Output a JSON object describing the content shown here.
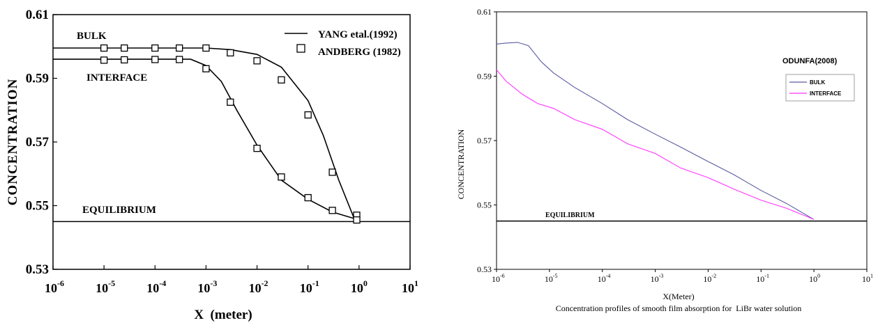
{
  "chart_data": [
    {
      "type": "line",
      "xlabel": "X  (meter)",
      "ylabel": "CONCENTRATION",
      "xscale": "log",
      "xlim": [
        1e-06,
        10
      ],
      "ylim": [
        0.53,
        0.61
      ],
      "xticks": [
        {
          "base": "10",
          "exp": "-6",
          "value": 1e-06
        },
        {
          "base": "10",
          "exp": "-5",
          "value": 1e-05
        },
        {
          "base": "10",
          "exp": "-4",
          "value": 0.0001
        },
        {
          "base": "10",
          "exp": "-3",
          "value": 0.001
        },
        {
          "base": "10",
          "exp": "-2",
          "value": 0.01
        },
        {
          "base": "10",
          "exp": "-1",
          "value": 0.1
        },
        {
          "base": "10",
          "exp": "0",
          "value": 1
        },
        {
          "base": "10",
          "exp": "1",
          "value": 10
        }
      ],
      "yticks": [
        {
          "label": "0.53",
          "value": 0.53
        },
        {
          "label": "0.55",
          "value": 0.55
        },
        {
          "label": "0.57",
          "value": 0.57
        },
        {
          "label": "0.59",
          "value": 0.59
        },
        {
          "label": "0.61",
          "value": 0.61
        }
      ],
      "legend": [
        {
          "label": "YANG etal.(1992)",
          "marker": "line"
        },
        {
          "label": "ANDBERG (1982)",
          "marker": "square"
        }
      ],
      "annotations": [
        "BULK",
        "INTERFACE",
        "EQUILIBRIUM"
      ],
      "equilibrium": 0.545,
      "series": [
        {
          "name": "BULK",
          "line": [
            [
              1e-06,
              0.5995
            ],
            [
              0.001,
              0.5995
            ],
            [
              0.003,
              0.599
            ],
            [
              0.01,
              0.5975
            ],
            [
              0.03,
              0.5935
            ],
            [
              0.1,
              0.583
            ],
            [
              0.2,
              0.572
            ],
            [
              0.4,
              0.558
            ],
            [
              0.8,
              0.546
            ],
            [
              1,
              0.5455
            ]
          ],
          "markers": [
            [
              1e-05,
              0.5995
            ],
            [
              2.5e-05,
              0.5995
            ],
            [
              0.0001,
              0.5995
            ],
            [
              0.0003,
              0.5995
            ],
            [
              0.001,
              0.5995
            ],
            [
              0.003,
              0.598
            ],
            [
              0.01,
              0.5955
            ],
            [
              0.03,
              0.5895
            ],
            [
              0.1,
              0.5785
            ],
            [
              0.3,
              0.5605
            ],
            [
              0.9,
              0.547
            ]
          ]
        },
        {
          "name": "INTERFACE",
          "line": [
            [
              1e-06,
              0.596
            ],
            [
              0.0005,
              0.596
            ],
            [
              0.001,
              0.594
            ],
            [
              0.002,
              0.589
            ],
            [
              0.004,
              0.58
            ],
            [
              0.01,
              0.569
            ],
            [
              0.03,
              0.558
            ],
            [
              0.1,
              0.552
            ],
            [
              0.3,
              0.548
            ],
            [
              1,
              0.5455
            ]
          ],
          "markers": [
            [
              1e-05,
              0.5957
            ],
            [
              2.5e-05,
              0.5958
            ],
            [
              0.0001,
              0.5959
            ],
            [
              0.0003,
              0.5959
            ],
            [
              0.001,
              0.593
            ],
            [
              0.003,
              0.5825
            ],
            [
              0.01,
              0.568
            ],
            [
              0.03,
              0.559
            ],
            [
              0.1,
              0.5525
            ],
            [
              0.3,
              0.5485
            ],
            [
              0.9,
              0.5455
            ]
          ]
        }
      ]
    },
    {
      "type": "line",
      "title": "ODUNFA(2008)",
      "caption": "Concentration profiles of smooth film absorption for  LiBr water solution",
      "xlabel": "X(Meter)",
      "ylabel": "CONCENTRATION",
      "xscale": "log",
      "xlim": [
        1e-06,
        10
      ],
      "ylim": [
        0.53,
        0.61
      ],
      "xticks": [
        {
          "base": "10",
          "exp": "-6",
          "value": 1e-06
        },
        {
          "base": "10",
          "exp": "-5",
          "value": 1e-05
        },
        {
          "base": "10",
          "exp": "-4",
          "value": 0.0001
        },
        {
          "base": "10",
          "exp": "-3",
          "value": 0.001
        },
        {
          "base": "10",
          "exp": "-2",
          "value": 0.01
        },
        {
          "base": "10",
          "exp": "-1",
          "value": 0.1
        },
        {
          "base": "10",
          "exp": "0",
          "value": 1
        },
        {
          "base": "10",
          "exp": "1",
          "value": 10
        }
      ],
      "yticks": [
        {
          "label": "0.53",
          "value": 0.53
        },
        {
          "label": "0.55",
          "value": 0.55
        },
        {
          "label": "0.57",
          "value": 0.57
        },
        {
          "label": "0.59",
          "value": 0.59
        },
        {
          "label": "0.61",
          "value": 0.61
        }
      ],
      "legend_position": "right",
      "annotations": [
        "EQUILIBRIUM"
      ],
      "equilibrium": 0.545,
      "series": [
        {
          "name": "BULK",
          "color": "#5a5aa0",
          "points": [
            [
              1e-06,
              0.6
            ],
            [
              1.5e-06,
              0.6003
            ],
            [
              2.5e-06,
              0.6005
            ],
            [
              4e-06,
              0.5995
            ],
            [
              7e-06,
              0.5945
            ],
            [
              1.2e-05,
              0.591
            ],
            [
              3e-05,
              0.5865
            ],
            [
              0.0001,
              0.5815
            ],
            [
              0.0003,
              0.5765
            ],
            [
              0.001,
              0.572
            ],
            [
              0.003,
              0.568
            ],
            [
              0.01,
              0.5635
            ],
            [
              0.03,
              0.5595
            ],
            [
              0.1,
              0.5545
            ],
            [
              0.3,
              0.5505
            ],
            [
              1,
              0.5455
            ]
          ]
        },
        {
          "name": "INTERFACE",
          "color": "#ff33ff",
          "points": [
            [
              1e-06,
              0.592
            ],
            [
              1.5e-06,
              0.5885
            ],
            [
              3e-06,
              0.5845
            ],
            [
              6e-06,
              0.5815
            ],
            [
              1.2e-05,
              0.58
            ],
            [
              3e-05,
              0.5765
            ],
            [
              0.0001,
              0.5735
            ],
            [
              0.0003,
              0.569
            ],
            [
              0.001,
              0.566
            ],
            [
              0.003,
              0.5615
            ],
            [
              0.01,
              0.5585
            ],
            [
              0.03,
              0.555
            ],
            [
              0.1,
              0.5515
            ],
            [
              0.3,
              0.549
            ],
            [
              1,
              0.5455
            ]
          ]
        }
      ]
    }
  ]
}
